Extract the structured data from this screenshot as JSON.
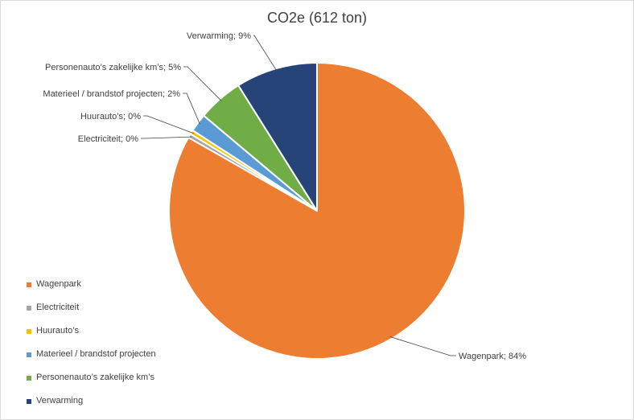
{
  "chart_data": {
    "type": "pie",
    "title": "CO2e (612 ton)",
    "slices": [
      {
        "name": "Wagenpark",
        "value": 84,
        "label": "Wagenpark; 84%",
        "color": "#ED7D31"
      },
      {
        "name": "Electriciteit",
        "value": 0,
        "label": "Electriciteit; 0%",
        "color": "#A5A5A5"
      },
      {
        "name": "Huurauto’s",
        "value": 0,
        "label": "Huurauto’s; 0%",
        "color": "#FFC000"
      },
      {
        "name": "Materieel / brandstof projecten",
        "value": 2,
        "label": "Materieel / brandstof projecten; 2%",
        "color": "#5B9BD5"
      },
      {
        "name": "Personenauto’s zakelijke km’s",
        "value": 5,
        "label": "Personenauto’s zakelijke km’s; 5%",
        "color": "#70AD47"
      },
      {
        "name": "Verwarming",
        "value": 9,
        "label": "Verwarming; 9%",
        "color": "#264478"
      }
    ],
    "legend_position": "left"
  }
}
